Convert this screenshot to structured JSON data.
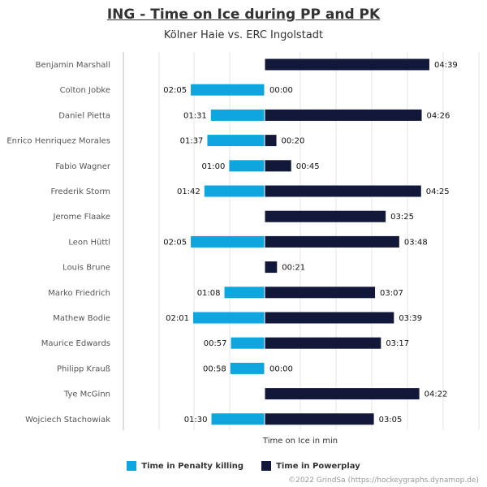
{
  "header": {
    "title": "ING - Time on Ice during PP and PK",
    "subtitle": "Kölner Haie vs. ERC Ingolstadt"
  },
  "legend": {
    "pk_label": "Time in Penalty killing",
    "pp_label": "Time in Powerplay"
  },
  "footer": {
    "credit": "©2022 GrindSa (https://hockeygraphs.dynamop.de)"
  },
  "colors": {
    "penalty_killing": "#0fa6e0",
    "powerplay": "#12183a",
    "grid": "#e6e6e6",
    "axis": "#bdbdbd"
  },
  "chart_data": {
    "type": "bar",
    "orientation": "horizontal-diverging",
    "xlabel": "Time on Ice in min",
    "xlim_seconds": [
      -324,
      300
    ],
    "grid": true,
    "legend_position": "bottom",
    "categories": [
      "Benjamin Marshall",
      "Colton Jobke",
      "Daniel Pietta",
      "Enrico Henriquez Morales",
      "Fabio Wagner",
      "Frederik Storm",
      "Jerome Flaake",
      "Leon Hüttl",
      "Louis Brune",
      "Marko Friedrich",
      "Mathew Bodie",
      "Maurice Edwards",
      "Philipp Krauß",
      "Tye McGinn",
      "Wojciech Stachowiak"
    ],
    "series": [
      {
        "name": "Time in Penalty killing",
        "values_seconds": [
          null,
          125,
          91,
          97,
          60,
          102,
          null,
          125,
          null,
          68,
          121,
          57,
          58,
          null,
          90
        ],
        "labels": [
          null,
          "02:05",
          "01:31",
          "01:37",
          "01:00",
          "01:42",
          null,
          "02:05",
          null,
          "01:08",
          "02:01",
          "00:57",
          "00:58",
          null,
          "01:30"
        ]
      },
      {
        "name": "Time in Powerplay",
        "values_seconds": [
          279,
          0,
          266,
          20,
          45,
          265,
          205,
          228,
          21,
          187,
          219,
          197,
          0,
          262,
          185
        ],
        "labels": [
          "04:39",
          "00:00",
          "04:26",
          "00:20",
          "00:45",
          "04:25",
          "03:25",
          "03:48",
          "00:21",
          "03:07",
          "03:39",
          "03:17",
          "00:00",
          "04:22",
          "03:05"
        ]
      }
    ]
  }
}
